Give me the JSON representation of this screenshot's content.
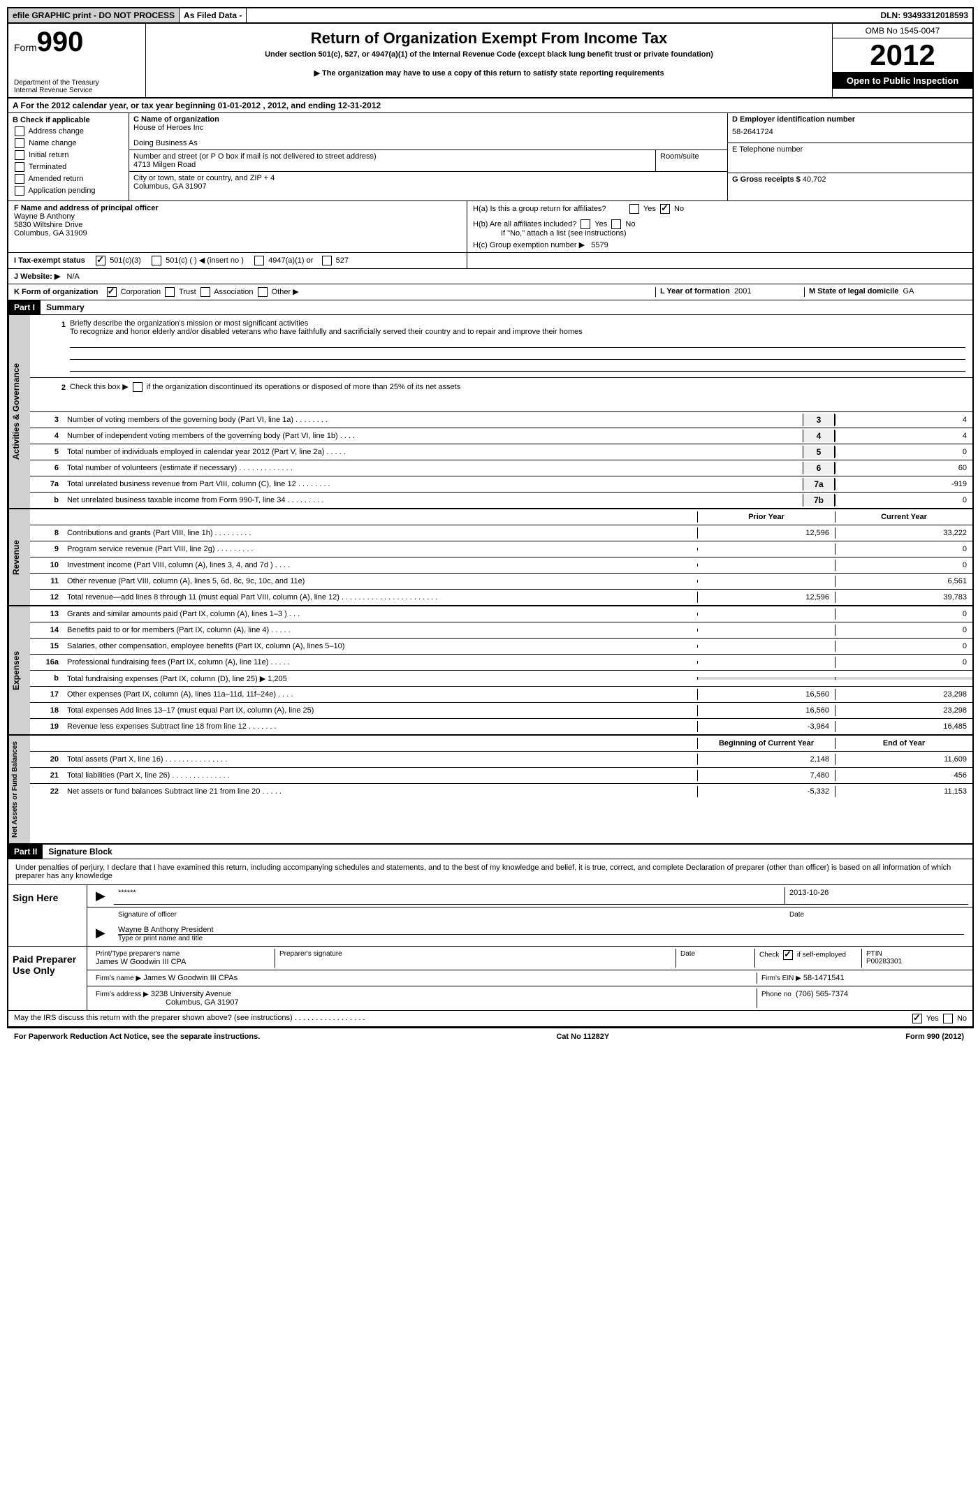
{
  "top": {
    "efile": "efile GRAPHIC print - DO NOT PROCESS",
    "asfiled": "As Filed Data -",
    "dln_label": "DLN:",
    "dln": "93493312018593"
  },
  "header": {
    "form_word": "Form",
    "form_num": "990",
    "dept1": "Department of the Treasury",
    "dept2": "Internal Revenue Service",
    "title": "Return of Organization Exempt From Income Tax",
    "subtitle": "Under section 501(c), 527, or 4947(a)(1) of the Internal Revenue Code (except black lung benefit trust or private foundation)",
    "copy_note": "▶ The organization may have to use a copy of this return to satisfy state reporting requirements",
    "omb": "OMB No 1545-0047",
    "year": "2012",
    "open": "Open to Public Inspection"
  },
  "section_a": "A  For the 2012 calendar year, or tax year beginning 01-01-2012     , 2012, and ending 12-31-2012",
  "b": {
    "label": "B  Check if applicable",
    "addr": "Address change",
    "name": "Name change",
    "initial": "Initial return",
    "term": "Terminated",
    "amended": "Amended return",
    "pending": "Application pending"
  },
  "c": {
    "name_label": "C Name of organization",
    "name": "House of Heroes Inc",
    "dba_label": "Doing Business As",
    "dba": "",
    "street_label": "Number and street (or P O  box if mail is not delivered to street address)",
    "room_label": "Room/suite",
    "street": "4713 Milgen Road",
    "city_label": "City or town, state or country, and ZIP + 4",
    "city": "Columbus, GA  31907"
  },
  "d": {
    "ein_label": "D Employer identification number",
    "ein": "58-2641724",
    "tel_label": "E Telephone number",
    "tel": "",
    "gross_label": "G Gross receipts $",
    "gross": "40,702"
  },
  "f": {
    "label": "F    Name and address of principal officer",
    "name": "Wayne B Anthony",
    "street": "5830 Wiltshire Drive",
    "city": "Columbus, GA  31909"
  },
  "h": {
    "ha": "H(a)   Is this a group return for affiliates?",
    "hb": "H(b)   Are all affiliates included?",
    "hb_note": "If \"No,\" attach a list  (see instructions)",
    "hc": "H(c)    Group exemption number ▶",
    "hc_val": "5579"
  },
  "i": {
    "label": "I    Tax-exempt status",
    "o501c3": "501(c)(3)",
    "o501c": "501(c) (   ) ◀ (insert no )",
    "o4947": "4947(a)(1) or",
    "o527": "527"
  },
  "j": {
    "label": "J   Website: ▶",
    "val": "N/A"
  },
  "k": {
    "label": "K Form of organization",
    "corp": "Corporation",
    "trust": "Trust",
    "assoc": "Association",
    "other": "Other ▶",
    "l_label": "L  Year of formation",
    "l_val": "2001",
    "m_label": "M State of legal domicile",
    "m_val": "GA"
  },
  "part1": {
    "header": "Part I",
    "title": "Summary",
    "line1_label": "Briefly describe the organization's mission or most significant activities",
    "line1_text": "To recognize and honor elderly and/or disabled veterans who have faithfully and sacrificially served their country and to repair and improve their homes",
    "line2": "Check this box ▶      if the organization discontinued its operations or disposed of more than 25% of its net assets",
    "gov_label": "Activities & Governance",
    "rev_label": "Revenue",
    "exp_label": "Expenses",
    "net_label": "Net Assets or Fund Balances",
    "prior": "Prior Year",
    "current": "Current Year",
    "begin": "Beginning of Current Year",
    "end": "End of Year",
    "rows_gov": [
      {
        "n": "3",
        "t": "Number of voting members of the governing body (Part VI, line 1a)  .  .  .  .  .  .  .  .",
        "c": "3",
        "v": "4"
      },
      {
        "n": "4",
        "t": "Number of independent voting members of the governing body (Part VI, line 1b)  .  .  .  .",
        "c": "4",
        "v": "4"
      },
      {
        "n": "5",
        "t": "Total number of individuals employed in calendar year 2012 (Part V, line 2a)  .  .  .  .  .",
        "c": "5",
        "v": "0"
      },
      {
        "n": "6",
        "t": "Total number of volunteers (estimate if necessary)  .  .  .  .  .  .  .  .  .  .  .  .  .",
        "c": "6",
        "v": "60"
      },
      {
        "n": "7a",
        "t": "Total unrelated business revenue from Part VIII, column (C), line 12  .  .  .  .  .  .  .  .",
        "c": "7a",
        "v": "-919"
      },
      {
        "n": "b",
        "t": "Net unrelated business taxable income from Form 990-T, line 34  .  .  .  .  .  .  .  .  .",
        "c": "7b",
        "v": "0"
      }
    ],
    "rows_rev": [
      {
        "n": "8",
        "t": "Contributions and grants (Part VIII, line 1h)  .  .  .  .  .  .  .  .  .",
        "p": "12,596",
        "v": "33,222"
      },
      {
        "n": "9",
        "t": "Program service revenue (Part VIII, line 2g)  .  .  .  .  .  .  .  .  .",
        "p": "",
        "v": "0"
      },
      {
        "n": "10",
        "t": "Investment income (Part VIII, column (A), lines 3, 4, and 7d )  .  .  .  .",
        "p": "",
        "v": "0"
      },
      {
        "n": "11",
        "t": "Other revenue (Part VIII, column (A), lines 5, 6d, 8c, 9c, 10c, and 11e)",
        "p": "",
        "v": "6,561"
      },
      {
        "n": "12",
        "t": "Total revenue—add lines 8 through 11 (must equal Part VIII, column (A), line 12) .  .  .  .  .  .  .  .  .  .  .  .  .  .  .  .  .  .  .  .  .  .  .",
        "p": "12,596",
        "v": "39,783"
      }
    ],
    "rows_exp": [
      {
        "n": "13",
        "t": "Grants and similar amounts paid (Part IX, column (A), lines 1–3 )  .  .  .",
        "p": "",
        "v": "0"
      },
      {
        "n": "14",
        "t": "Benefits paid to or for members (Part IX, column (A), line 4)  .  .  .  .  .",
        "p": "",
        "v": "0"
      },
      {
        "n": "15",
        "t": "Salaries, other compensation, employee benefits (Part IX, column (A), lines 5–10)",
        "p": "",
        "v": "0"
      },
      {
        "n": "16a",
        "t": "Professional fundraising fees (Part IX, column (A), line 11e)  .  .  .  .  .",
        "p": "",
        "v": "0"
      },
      {
        "n": "b",
        "t": "Total fundraising expenses (Part IX, column (D), line 25)  ▶ 1,205",
        "p": "shaded",
        "v": "shaded"
      },
      {
        "n": "17",
        "t": "Other expenses (Part IX, column (A), lines 11a–11d, 11f–24e)  .  .  .  .",
        "p": "16,560",
        "v": "23,298"
      },
      {
        "n": "18",
        "t": "Total expenses  Add lines 13–17 (must equal Part IX, column (A), line 25)",
        "p": "16,560",
        "v": "23,298"
      },
      {
        "n": "19",
        "t": "Revenue less expenses  Subtract line 18 from line 12  .  .  .  .  .  .  .",
        "p": "-3,964",
        "v": "16,485"
      }
    ],
    "rows_net": [
      {
        "n": "20",
        "t": "Total assets (Part X, line 16)  .  .  .  .  .  .  .  .  .  .  .  .  .  .  .",
        "p": "2,148",
        "v": "11,609"
      },
      {
        "n": "21",
        "t": "Total liabilities (Part X, line 26)  .  .  .  .  .  .  .  .  .  .  .  .  .  .",
        "p": "7,480",
        "v": "456"
      },
      {
        "n": "22",
        "t": "Net assets or fund balances  Subtract line 21 from line 20  .  .  .  .  .",
        "p": "-5,332",
        "v": "11,153"
      }
    ]
  },
  "part2": {
    "header": "Part II",
    "title": "Signature Block",
    "declaration": "Under penalties of perjury, I declare that I have examined this return, including accompanying schedules and statements, and to the best of my knowledge and belief, it is true, correct, and complete  Declaration of preparer (other than officer) is based on all information of which preparer has any knowledge",
    "sign_here": "Sign Here",
    "sig_stars": "******",
    "sig_date": "2013-10-26",
    "sig_of_officer": "Signature of officer",
    "date_label": "Date",
    "officer_name": "Wayne B Anthony President",
    "type_name": "Type or print name and title",
    "paid_label": "Paid Preparer Use Only",
    "prep_name_label": "Print/Type preparer's name",
    "prep_name": "James W Goodwin III CPA",
    "prep_sig_label": "Preparer's signature",
    "check_self": "Check",
    "if_self": "if self-employed",
    "ptin_label": "PTIN",
    "ptin": "P00283301",
    "firm_name_label": "Firm's name    ▶",
    "firm_name": "James W Goodwin III CPAs",
    "firm_ein_label": "Firm's EIN ▶",
    "firm_ein": "58-1471541",
    "firm_addr_label": "Firm's address ▶",
    "firm_addr1": "3238 University Avenue",
    "firm_addr2": "Columbus, GA  31907",
    "phone_label": "Phone no",
    "phone": "(706) 565-7374",
    "irs_discuss": "May the IRS discuss this return with the preparer shown above? (see instructions)  .  .  .  .  .  .  .  .  .  .  .  .  .  .  .  .  .",
    "yes": "Yes",
    "no": "No"
  },
  "footer": {
    "left": "For Paperwork Reduction Act Notice, see the separate instructions.",
    "center": "Cat No  11282Y",
    "right": "Form 990 (2012)"
  }
}
